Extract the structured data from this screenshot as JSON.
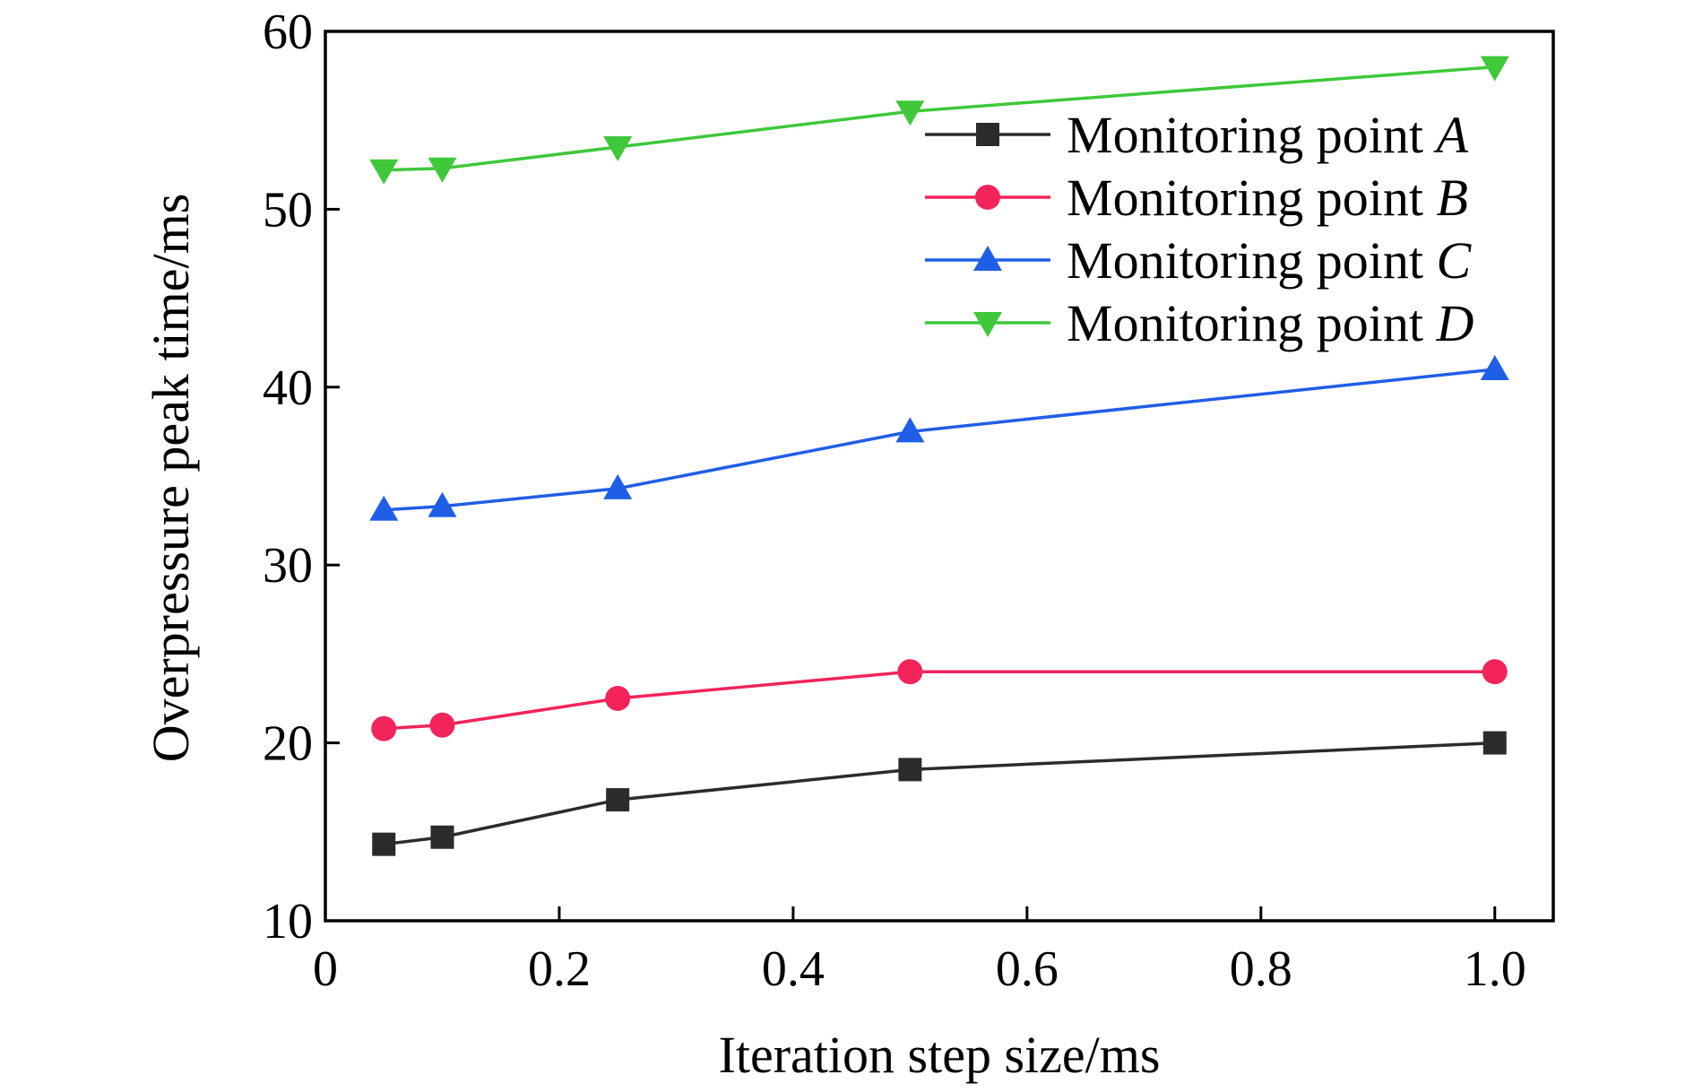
{
  "chart_data": {
    "type": "line",
    "title": "",
    "xlabel": "Iteration step size/ms",
    "ylabel": "Overpressure peak time/ms",
    "xlim": [
      0,
      1.05
    ],
    "ylim": [
      10,
      60
    ],
    "x_ticks": [
      0,
      0.2,
      0.4,
      0.6,
      0.8,
      1.0
    ],
    "x_tick_labels": [
      "0",
      "0.2",
      "0.4",
      "0.6",
      "0.8",
      "1.0"
    ],
    "y_ticks": [
      10,
      20,
      30,
      40,
      50,
      60
    ],
    "y_tick_labels": [
      "10",
      "20",
      "30",
      "40",
      "50",
      "60"
    ],
    "grid": false,
    "legend_position": "top-right",
    "x": [
      0.05,
      0.1,
      0.25,
      0.5,
      1.0
    ],
    "series": [
      {
        "name": "Monitoring point A",
        "name_prefix": "Monitoring point ",
        "name_point": "A",
        "marker": "square",
        "color": "#2b2b2b",
        "values": [
          14.3,
          14.7,
          16.8,
          18.5,
          20.0
        ]
      },
      {
        "name": "Monitoring point B",
        "name_prefix": "Monitoring point ",
        "name_point": "B",
        "marker": "circle",
        "color": "#f2245a",
        "values": [
          20.8,
          21.0,
          22.5,
          24.0,
          24.0
        ]
      },
      {
        "name": "Monitoring point C",
        "name_prefix": "Monitoring point ",
        "name_point": "C",
        "marker": "triangle-up",
        "color": "#1f5ee6",
        "values": [
          33.1,
          33.3,
          34.3,
          37.5,
          41.0
        ]
      },
      {
        "name": "Monitoring point D",
        "name_prefix": "Monitoring point ",
        "name_point": "D",
        "marker": "triangle-down",
        "color": "#3ec83a",
        "values": [
          52.2,
          52.3,
          53.5,
          55.5,
          58.0
        ]
      }
    ]
  }
}
